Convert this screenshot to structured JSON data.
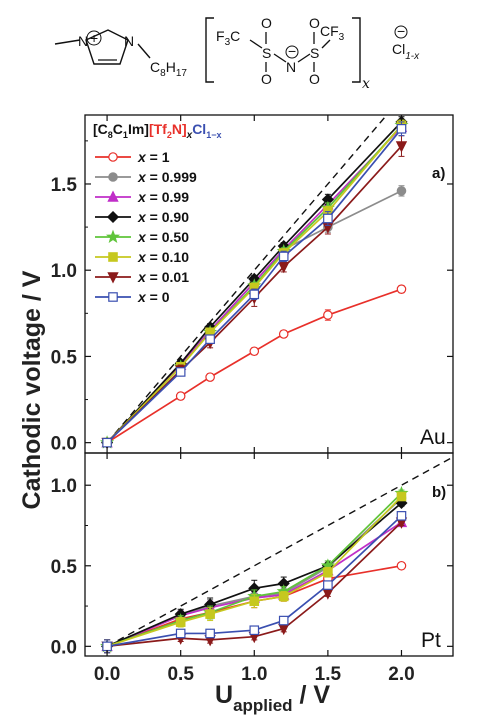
{
  "structure": {
    "methyl": "—",
    "n_plus": "N",
    "plus_sign": "+",
    "n_chain": "N",
    "chain": "C",
    "chain_sub": "8",
    "chain_h": "H",
    "chain_h_sub": "17",
    "cf3_left_c": "F",
    "cf3_left_sub": "3",
    "cf3_left_tail": "C",
    "s1": "S",
    "s2": "S",
    "n_anion": "N",
    "n_minus": "−",
    "o": "O",
    "cf3_right": "CF",
    "cf3_right_sub": "3",
    "bracket_sub": "x",
    "cl": "Cl",
    "cl_sub": "1-x",
    "cl_minus": "−"
  },
  "chart_data": [
    {
      "type": "line",
      "panel_label": "a)",
      "electrode": "Au",
      "xlim": [
        -0.15,
        2.35
      ],
      "ylim": [
        -0.06,
        1.9
      ],
      "xticks": [
        "0.0",
        "0.5",
        "1.0",
        "1.5",
        "2.0"
      ],
      "yticks": [
        "0.0",
        "0.5",
        "1.0",
        "1.5"
      ],
      "ytick_values": [
        0.0,
        0.5,
        1.0,
        1.5
      ],
      "xtick_values": [
        0.0,
        0.5,
        1.0,
        1.5,
        2.0
      ],
      "reference_line": {
        "style": "dashed",
        "slope": 1
      },
      "x": [
        0.0,
        0.5,
        0.7,
        1.0,
        1.2,
        1.5,
        2.0
      ],
      "series": [
        {
          "name": "x = 1",
          "values": [
            0.0,
            0.27,
            0.38,
            0.53,
            0.63,
            0.74,
            0.89
          ],
          "err": [
            0.02,
            0.02,
            0.02,
            0.02,
            0.02,
            0.03,
            0.02
          ]
        },
        {
          "name": "x = 0.999",
          "values": [
            0.0,
            0.45,
            0.65,
            0.93,
            1.12,
            1.25,
            1.46
          ],
          "err": [
            0.02,
            0.02,
            0.02,
            0.02,
            0.02,
            0.03,
            0.03
          ]
        },
        {
          "name": "x = 0.99",
          "values": [
            0.0,
            0.45,
            0.65,
            0.93,
            1.12,
            1.38,
            1.83
          ],
          "err": [
            0.02,
            0.02,
            0.02,
            0.02,
            0.02,
            0.03,
            0.03
          ]
        },
        {
          "name": "x = 0.90",
          "values": [
            0.0,
            0.46,
            0.67,
            0.95,
            1.14,
            1.41,
            1.86
          ],
          "err": [
            0.02,
            0.02,
            0.02,
            0.02,
            0.02,
            0.03,
            0.03
          ]
        },
        {
          "name": "x = 0.50",
          "values": [
            0.0,
            0.44,
            0.64,
            0.91,
            1.11,
            1.36,
            1.84
          ],
          "err": [
            0.02,
            0.02,
            0.02,
            0.02,
            0.02,
            0.03,
            0.03
          ]
        },
        {
          "name": "x = 0.10",
          "values": [
            0.0,
            0.44,
            0.64,
            0.9,
            1.1,
            1.34,
            1.84
          ],
          "err": [
            0.02,
            0.02,
            0.02,
            0.02,
            0.02,
            0.03,
            0.03
          ]
        },
        {
          "name": "x = 0.01",
          "values": [
            0.0,
            0.42,
            0.58,
            0.84,
            1.02,
            1.25,
            1.72
          ],
          "err": [
            0.02,
            0.03,
            0.03,
            0.05,
            0.03,
            0.04,
            0.06
          ]
        },
        {
          "name": "x = 0",
          "values": [
            0.0,
            0.41,
            0.6,
            0.86,
            1.08,
            1.3,
            1.82
          ],
          "err": [
            0.02,
            0.02,
            0.02,
            0.03,
            0.03,
            0.04,
            0.04
          ]
        }
      ]
    },
    {
      "type": "line",
      "panel_label": "b)",
      "electrode": "Pt",
      "xlim": [
        -0.15,
        2.35
      ],
      "ylim": [
        -0.06,
        1.2
      ],
      "xticks": [
        "0.0",
        "0.5",
        "1.0",
        "1.5",
        "2.0"
      ],
      "yticks": [
        "0.0",
        "0.5",
        "1.0"
      ],
      "ytick_values": [
        0.0,
        0.5,
        1.0
      ],
      "xtick_values": [
        0.0,
        0.5,
        1.0,
        1.5,
        2.0
      ],
      "reference_line": {
        "style": "dashed",
        "slope": 0.5
      },
      "x": [
        0.0,
        0.5,
        0.7,
        1.0,
        1.2,
        1.5,
        2.0
      ],
      "series": [
        {
          "name": "x = 1",
          "values": [
            0.0,
            0.17,
            0.21,
            0.28,
            0.31,
            0.42,
            0.5
          ],
          "err": [
            0.04,
            0.03,
            0.04,
            0.04,
            0.03,
            0.03,
            0.02
          ]
        },
        {
          "name": "x = 0.999",
          "values": [
            0.0,
            0.19,
            0.25,
            0.31,
            0.33,
            0.49,
            0.92
          ],
          "err": [
            0.04,
            0.03,
            0.04,
            0.04,
            0.03,
            0.03,
            0.02
          ]
        },
        {
          "name": "x = 0.99",
          "values": [
            0.0,
            0.19,
            0.24,
            0.3,
            0.32,
            0.47,
            0.77
          ],
          "err": [
            0.04,
            0.03,
            0.04,
            0.04,
            0.03,
            0.03,
            0.02
          ]
        },
        {
          "name": "x = 0.90",
          "values": [
            0.0,
            0.2,
            0.26,
            0.36,
            0.39,
            0.5,
            0.89
          ],
          "err": [
            0.04,
            0.03,
            0.04,
            0.05,
            0.04,
            0.03,
            0.02
          ]
        },
        {
          "name": "x = 0.50",
          "values": [
            0.0,
            0.16,
            0.21,
            0.31,
            0.34,
            0.5,
            0.95
          ],
          "err": [
            0.04,
            0.03,
            0.04,
            0.04,
            0.03,
            0.03,
            0.02
          ]
        },
        {
          "name": "x = 0.10",
          "values": [
            0.0,
            0.15,
            0.2,
            0.28,
            0.31,
            0.46,
            0.93
          ],
          "err": [
            0.04,
            0.03,
            0.04,
            0.04,
            0.03,
            0.03,
            0.02
          ]
        },
        {
          "name": "x = 0.01",
          "values": [
            0.0,
            0.05,
            0.04,
            0.06,
            0.11,
            0.33,
            0.77
          ],
          "err": [
            0.04,
            0.02,
            0.02,
            0.02,
            0.02,
            0.02,
            0.02
          ]
        },
        {
          "name": "x = 0",
          "values": [
            0.0,
            0.08,
            0.08,
            0.1,
            0.16,
            0.38,
            0.81
          ],
          "err": [
            0.04,
            0.02,
            0.02,
            0.02,
            0.02,
            0.02,
            0.02
          ]
        }
      ]
    }
  ],
  "styles": [
    {
      "color": "#e8302a",
      "marker": "circle-open"
    },
    {
      "color": "#8c8c8c",
      "marker": "circle"
    },
    {
      "color": "#c02ec8",
      "marker": "triangle"
    },
    {
      "color": "#111111",
      "marker": "diamond"
    },
    {
      "color": "#5fc43a",
      "marker": "star"
    },
    {
      "color": "#c6c81f",
      "marker": "square"
    },
    {
      "color": "#8b1a1a",
      "marker": "triangle-down"
    },
    {
      "color": "#3a4fb0",
      "marker": "square-open"
    }
  ],
  "legend": {
    "header_prefix": "[C",
    "header_sub1": "8",
    "header_c": "C",
    "header_sub2": "1",
    "header_im": "Im]",
    "header_tf_open": "[Tf",
    "header_tf_sub": "2",
    "header_tf_close": "N]",
    "header_x": "x",
    "header_cl": "Cl",
    "header_cl_sub": "1−x",
    "color_tf": "#e8302a",
    "color_cl": "#3a4fb0",
    "position": "top-left"
  },
  "axes": {
    "ylabel": "Cathodic voltage / V",
    "xlabel_main": "U",
    "xlabel_sub": "applied",
    "xlabel_unit": " / V"
  }
}
